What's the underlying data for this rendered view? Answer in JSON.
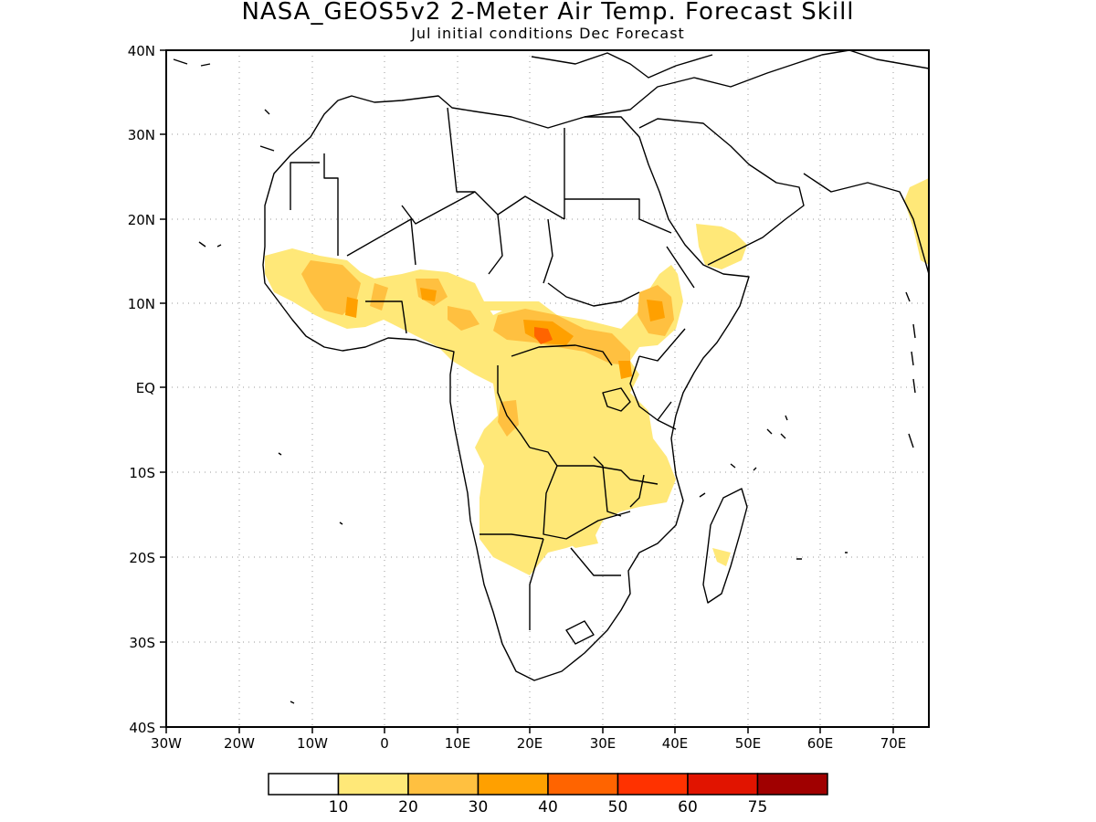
{
  "title": "NASA_GEOS5v2 2-Meter Air Temp. Forecast Skill",
  "subtitle": "Jul initial conditions   Dec Forecast",
  "map": {
    "lon_range": [
      -30,
      75
    ],
    "lat_range": [
      -40,
      40
    ],
    "lon_labels": [
      "30W",
      "20W",
      "10W",
      "0",
      "10E",
      "20E",
      "30E",
      "40E",
      "50E",
      "60E",
      "70E"
    ],
    "lat_labels": [
      "40N",
      "30N",
      "20N",
      "10N",
      "EQ",
      "10S",
      "20S",
      "30S",
      "40S"
    ],
    "grid": "dotted"
  },
  "colorbar": {
    "labels": [
      "10",
      "20",
      "30",
      "40",
      "50",
      "60",
      "75"
    ],
    "colors": [
      "#ffffff",
      "#ffe878",
      "#ffc040",
      "#ffa000",
      "#ff6400",
      "#ff3200",
      "#e11400",
      "#a00000"
    ]
  }
}
